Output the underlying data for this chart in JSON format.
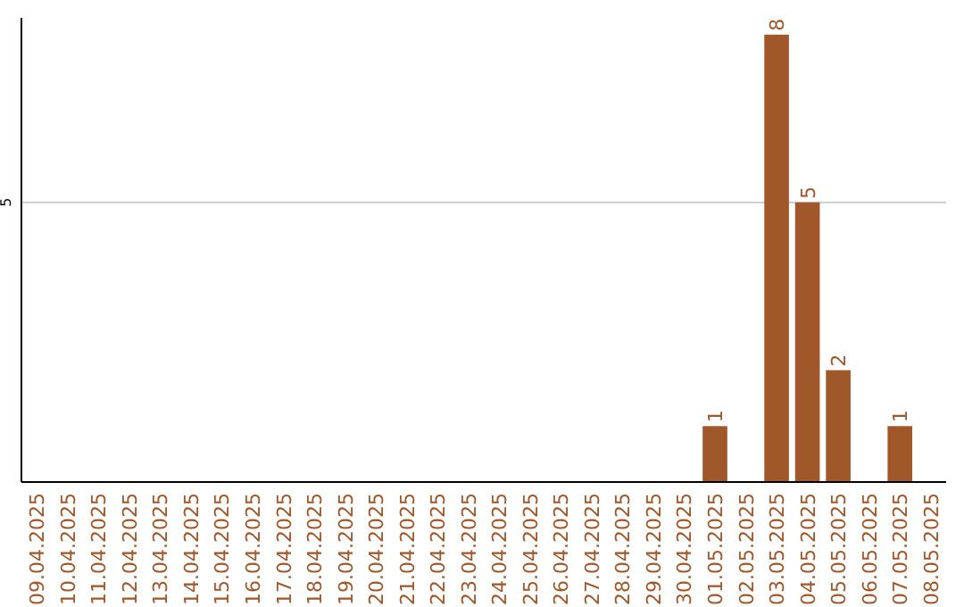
{
  "chart_data": {
    "type": "bar",
    "categories": [
      "09.04.2025",
      "10.04.2025",
      "11.04.2025",
      "12.04.2025",
      "13.04.2025",
      "14.04.2025",
      "15.04.2025",
      "16.04.2025",
      "17.04.2025",
      "18.04.2025",
      "19.04.2025",
      "20.04.2025",
      "21.04.2025",
      "22.04.2025",
      "23.04.2025",
      "24.04.2025",
      "25.04.2025",
      "26.04.2025",
      "27.04.2025",
      "28.04.2025",
      "29.04.2025",
      "30.04.2025",
      "01.05.2025",
      "02.05.2025",
      "03.05.2025",
      "04.05.2025",
      "05.05.2025",
      "06.05.2025",
      "07.05.2025",
      "08.05.2025"
    ],
    "values": [
      null,
      null,
      null,
      null,
      null,
      null,
      null,
      null,
      null,
      null,
      null,
      null,
      null,
      null,
      null,
      null,
      null,
      null,
      null,
      null,
      null,
      null,
      1,
      null,
      8,
      5,
      2,
      null,
      1,
      null
    ],
    "value_labels": [
      null,
      null,
      null,
      null,
      null,
      null,
      null,
      null,
      null,
      null,
      null,
      null,
      null,
      null,
      null,
      null,
      null,
      null,
      null,
      null,
      null,
      null,
      "1",
      null,
      "8",
      "5",
      "2",
      null,
      "1",
      null
    ],
    "ylim": [
      0,
      8.3
    ],
    "yticks": [
      5
    ],
    "grid": "y",
    "color": "#a0572a"
  }
}
